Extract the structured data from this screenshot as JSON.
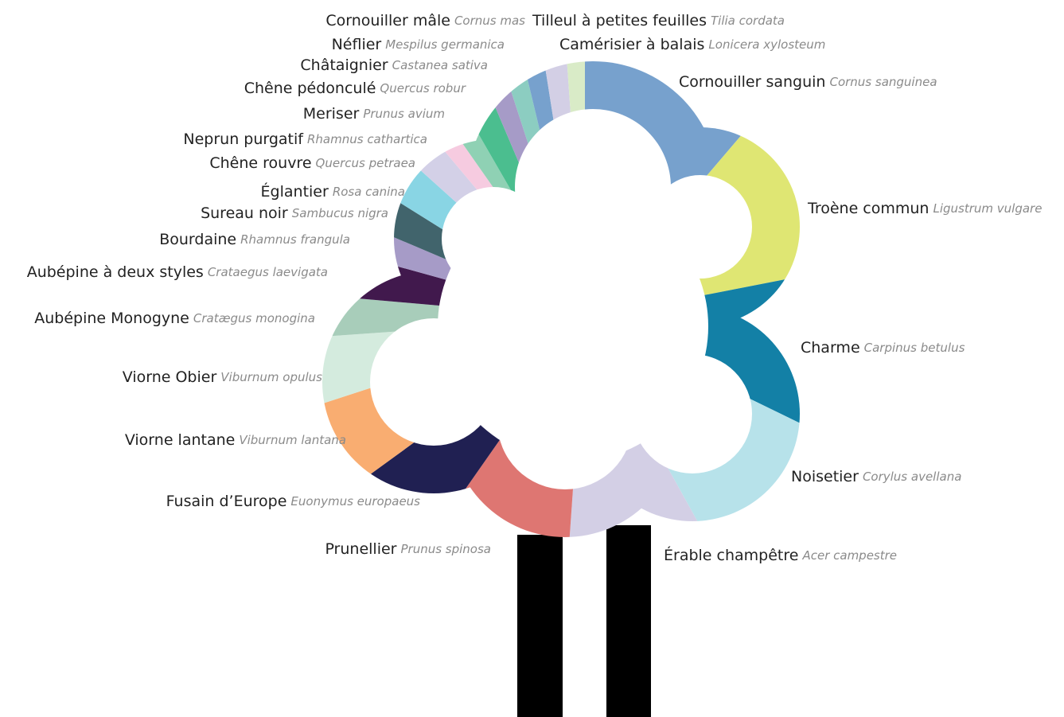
{
  "chart_data": {
    "type": "donut",
    "categories": [
      "Cornouiller sanguin",
      "Troène commun",
      "Charme",
      "Noisetier",
      "Érable champêtre",
      "Prunellier",
      "Fusain d’Europe",
      "Viorne lantane",
      "Viorne Obier",
      "Aubépine Monogyne",
      "Aubépine à deux styles",
      "Bourdaine",
      "Sureau noir",
      "Églantier",
      "Chêne rouvre",
      "Neprun purgatif",
      "Meriser",
      "Chêne pédonculé",
      "Châtaignier",
      "Néflier",
      "Cornouiller mâle",
      "Tilleul à petites feuilles",
      "Camérisier à balais"
    ],
    "scientific_names": [
      "Cornus sanguinea",
      "Ligustrum vulgare",
      "Carpinus betulus",
      "Corylus avellana",
      "Acer campestre",
      "Prunus spinosa",
      "Euonymus europaeus",
      "Viburnum lantana",
      "Viburnum opulus",
      "Cratægus monogina",
      "Crataegus laevigata",
      "Rhamnus frangula",
      "Sambucus nigra",
      "Rosa canina",
      "Quercus petraea",
      "Rhamnus cathartica",
      "Prunus avium",
      "Quercus robur",
      "Castanea sativa",
      "Mespilus germanica",
      "Cornus mas",
      "Tilia cordata",
      "Lonicera xylosteum"
    ],
    "values": [
      40.5,
      38.5,
      37,
      35,
      33,
      31,
      19,
      18,
      14,
      9,
      10.5,
      7.5,
      9,
      10,
      8,
      5,
      5,
      7,
      5,
      4.5,
      4.5,
      5,
      4
    ],
    "colors": [
      "#77a1cd",
      "#dfe673",
      "#1380a6",
      "#b7e2ea",
      "#d3cfe5",
      "#de7672",
      "#202052",
      "#f9ad71",
      "#d4ebde",
      "#a8cdba",
      "#41194d",
      "#a69bc7",
      "#41646c",
      "#89d5e4",
      "#d3d0e7",
      "#f6cbe0",
      "#8fd1b4",
      "#4bbe8f",
      "#a69bc7",
      "#8ccdc1",
      "#77a1cd",
      "#d3cfe5",
      "#d9ebc7"
    ]
  }
}
